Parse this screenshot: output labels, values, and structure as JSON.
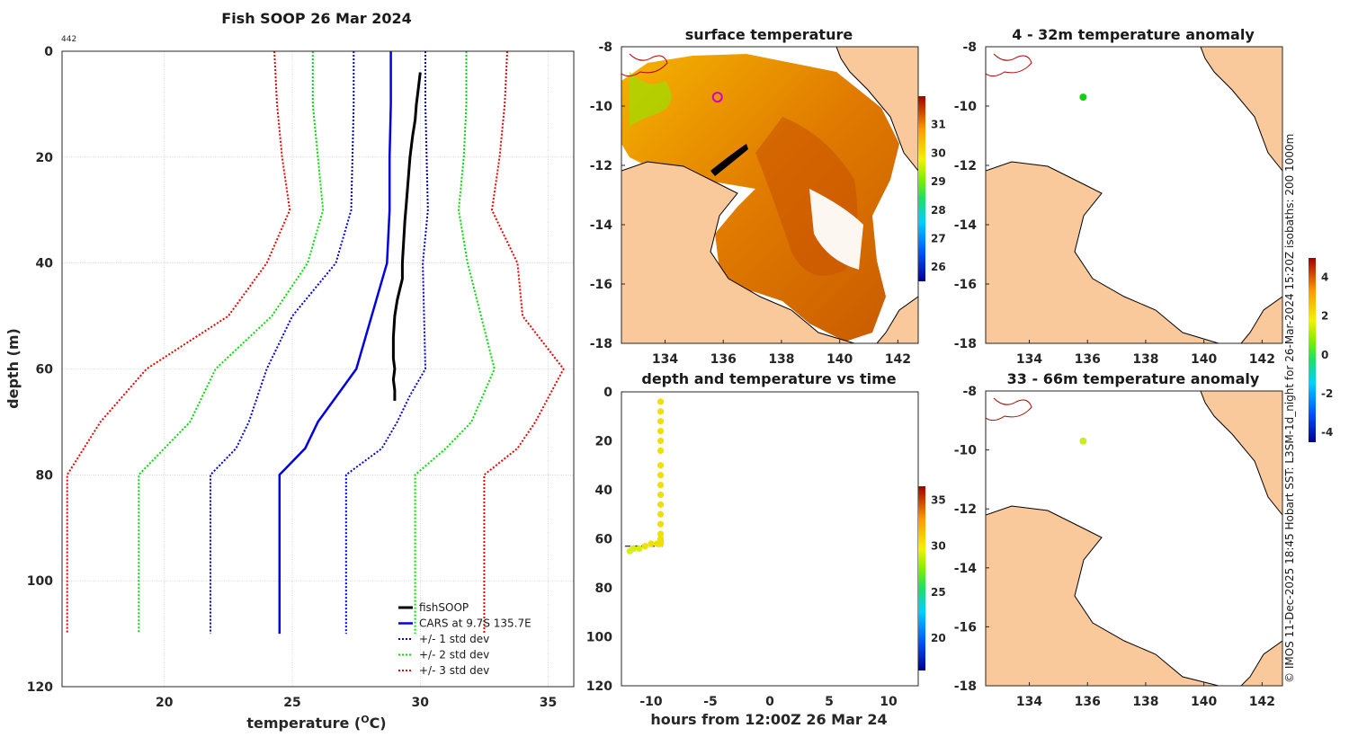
{
  "chart_data": [
    {
      "id": "profile",
      "type": "line",
      "title": "Fish SOOP 26 Mar 2024",
      "annotation": "442",
      "xlabel": "temperature (",
      "xlabel_sup": "O",
      "xlabel_suffix": "C)",
      "ylabel": "depth (m)",
      "xlim": [
        16,
        36
      ],
      "ylim": [
        120,
        0
      ],
      "xticks": [
        20,
        25,
        30,
        35
      ],
      "yticks": [
        0,
        20,
        40,
        60,
        80,
        100,
        120
      ],
      "series": [
        {
          "name": "fishSOOP",
          "color": "#000000",
          "style": "solid",
          "width": 3,
          "x": [
            30.0,
            29.95,
            29.9,
            29.85,
            29.8,
            29.7,
            29.6,
            29.55,
            29.5,
            29.45,
            29.4,
            29.35,
            29.3,
            29.3,
            29.2,
            29.1,
            29.0,
            28.95,
            28.95,
            29.0,
            28.95,
            29.0,
            29.0
          ],
          "y": [
            4,
            6,
            8,
            10,
            13,
            16,
            20,
            23,
            26,
            29,
            32,
            36,
            40,
            43,
            45,
            47,
            50,
            54,
            58,
            60,
            62,
            64,
            66
          ]
        },
        {
          "name": "CARS at 9.7S 135.7E",
          "color": "#0000e6",
          "style": "solid",
          "width": 2.5,
          "x": [
            28.85,
            28.85,
            28.8,
            28.8,
            28.7,
            27.5,
            26.0,
            25.5,
            24.5,
            24.5,
            24.5
          ],
          "y": [
            0,
            10,
            20,
            30,
            40,
            60,
            70,
            75,
            80,
            100,
            110
          ]
        },
        {
          "name": "+/- 1 std dev",
          "color": "#0000e6",
          "style": "dotted",
          "width": 2,
          "x": [
            30.2,
            30.2,
            30.25,
            30.3,
            30.1,
            30.2,
            29.6,
            29.1,
            28.5,
            27.1,
            27.1,
            27.1
          ],
          "y": [
            0,
            10,
            20,
            30,
            40,
            60,
            65,
            70,
            75,
            80,
            100,
            110
          ]
        },
        {
          "name": "+/- 1 std dev",
          "color": "#0000e6",
          "style": "dotted",
          "width": 2,
          "legend": false,
          "x": [
            27.4,
            27.4,
            27.35,
            27.3,
            26.7,
            25.0,
            24.0,
            23.3,
            22.8,
            21.8,
            21.8,
            21.8
          ],
          "y": [
            0,
            10,
            20,
            30,
            40,
            50,
            60,
            70,
            75,
            80,
            100,
            110
          ]
        },
        {
          "name": "+/- 2 std dev",
          "color": "#00dd00",
          "style": "dotted",
          "width": 2,
          "x": [
            31.8,
            31.8,
            31.7,
            31.5,
            31.85,
            32.9,
            32.0,
            31.0,
            29.8,
            29.8,
            29.8
          ],
          "y": [
            0,
            10,
            20,
            30,
            40,
            60,
            70,
            75,
            80,
            100,
            110
          ]
        },
        {
          "name": "+/- 2 std dev",
          "color": "#00dd00",
          "style": "dotted",
          "width": 2,
          "legend": false,
          "x": [
            25.8,
            25.8,
            26.0,
            26.2,
            25.6,
            24.2,
            22.0,
            21.0,
            19.0,
            19.0,
            19.0
          ],
          "y": [
            0,
            10,
            20,
            30,
            40,
            50,
            60,
            70,
            80,
            100,
            110
          ]
        },
        {
          "name": "+/- 3 std dev",
          "color": "#ee0000",
          "style": "dotted",
          "width": 2,
          "x": [
            33.4,
            33.3,
            33.1,
            32.8,
            33.8,
            34.0,
            35.6,
            34.5,
            33.8,
            32.5,
            32.5,
            32.5
          ],
          "y": [
            0,
            10,
            20,
            30,
            40,
            50,
            60,
            70,
            75,
            80,
            100,
            110
          ]
        },
        {
          "name": "+/- 3 std dev",
          "color": "#ee0000",
          "style": "dotted",
          "width": 2,
          "legend": false,
          "x": [
            24.3,
            24.4,
            24.6,
            24.9,
            24.0,
            22.5,
            19.3,
            17.5,
            16.2,
            16.2,
            16.2
          ],
          "y": [
            0,
            10,
            20,
            30,
            40,
            50,
            60,
            70,
            80,
            100,
            110
          ]
        }
      ]
    },
    {
      "id": "sst_map",
      "type": "heatmap",
      "title": "surface temperature",
      "xlim": [
        132.5,
        142.7
      ],
      "ylim": [
        -18,
        -8
      ],
      "xticks": [
        134,
        136,
        138,
        140,
        142
      ],
      "yticks": [
        -8,
        -10,
        -12,
        -14,
        -16,
        -18
      ],
      "colorbar": {
        "min": 25.5,
        "max": 32.0,
        "ticks": [
          26,
          27,
          28,
          29,
          30,
          31
        ]
      },
      "marker": {
        "lon": 135.8,
        "lat": -9.7
      }
    },
    {
      "id": "depth_time",
      "type": "scatter",
      "title": "depth and temperature vs time",
      "xlabel": "hours from 12:00Z 26 Mar 24",
      "xlim": [
        -12.5,
        12.5
      ],
      "ylim": [
        120,
        0
      ],
      "xticks": [
        -10,
        -5,
        0,
        5,
        10
      ],
      "yticks": [
        0,
        20,
        40,
        60,
        80,
        100,
        120
      ],
      "colorbar": {
        "min": 16.5,
        "max": 36.5,
        "ticks": [
          20,
          25,
          30,
          35
        ]
      },
      "points": {
        "x": [
          -9.2,
          -9.2,
          -9.2,
          -9.2,
          -9.2,
          -9.2,
          -9.2,
          -9.2,
          -9.2,
          -9.2,
          -9.2,
          -9.2,
          -9.2,
          -9.2,
          -9.2,
          -9.2,
          -9.2,
          -9.2,
          -9.2,
          -9.5,
          -10.0,
          -10.5,
          -11.0,
          -11.5,
          -11.8
        ],
        "y": [
          4,
          8,
          12,
          16,
          20,
          24,
          30,
          34,
          38,
          42,
          46,
          50,
          54,
          58,
          60,
          61,
          62,
          62,
          62,
          62,
          62,
          63,
          64,
          64,
          65
        ],
        "t": [
          30.0,
          29.9,
          29.8,
          29.7,
          29.6,
          29.5,
          29.4,
          29.3,
          29.3,
          29.2,
          29.1,
          29.0,
          29.0,
          29.0,
          29.0,
          29.0,
          29.0,
          29.0,
          29.0,
          29.0,
          29.0,
          29.0,
          28.5,
          28.0,
          27.8
        ]
      },
      "reference_line": {
        "x": [
          -12.2,
          -9.0
        ],
        "y": 63
      }
    },
    {
      "id": "anom_upper",
      "type": "heatmap",
      "title": "4 - 32m temperature anomaly",
      "xlim": [
        132.5,
        142.7
      ],
      "ylim": [
        -18,
        -8
      ],
      "xticks": [
        134,
        136,
        138,
        140,
        142
      ],
      "yticks": [
        -8,
        -10,
        -12,
        -14,
        -16,
        -18
      ],
      "marker": {
        "lon": 135.85,
        "lat": -9.7,
        "value": 0.3
      }
    },
    {
      "id": "anom_lower",
      "type": "heatmap",
      "title": "33 - 66m temperature anomaly",
      "xlim": [
        132.5,
        142.7
      ],
      "ylim": [
        -18,
        -8
      ],
      "xticks": [
        134,
        136,
        138,
        140,
        142
      ],
      "yticks": [
        -8,
        -10,
        -12,
        -14,
        -16,
        -18
      ],
      "marker": {
        "lon": 135.85,
        "lat": -9.7,
        "value": 1.2
      }
    },
    {
      "id": "anom_colorbar",
      "type": "heatmap",
      "colorbar": {
        "min": -4.5,
        "max": 5.0,
        "ticks": [
          -4,
          -2,
          0,
          2,
          4
        ]
      }
    }
  ],
  "credit": "© IMOS 11-Dec-2025 18:45 Hobart SST: L3SM-1d_night for 26-Mar-2024 15:20Z isobaths: 200  1000m",
  "colors": {
    "land": "#f9c89b",
    "ocean_bg": "#ffffff",
    "coast": "#000000",
    "river": "#b40000"
  }
}
